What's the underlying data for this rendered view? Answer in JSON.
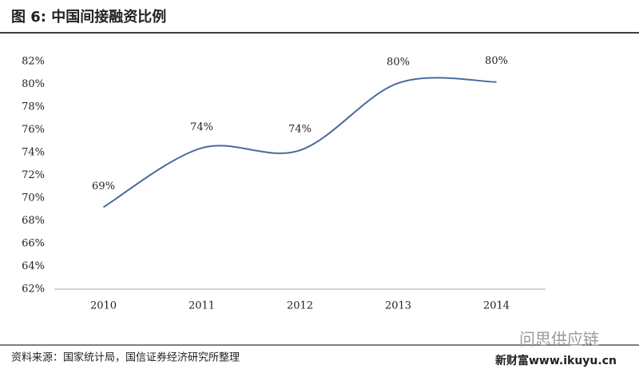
{
  "chart_data": {
    "type": "line",
    "title": "图 6: 中国间接融资比例",
    "source": "资料来源：国家统计局，国信证券经济研究所整理",
    "watermark": "问思供应链",
    "watermark_site": "新财富www.ikuyu.cn",
    "categories": [
      "2010",
      "2011",
      "2012",
      "2013",
      "2014"
    ],
    "values": [
      69.2,
      74.4,
      74.2,
      80.1,
      80.2
    ],
    "value_labels": [
      "69%",
      "74%",
      "74%",
      "80%",
      "80%"
    ],
    "color": "#4a6b9c",
    "smooth": true,
    "ylim": [
      62,
      82
    ],
    "yticks": [
      {
        "value": 62,
        "label": "62%"
      },
      {
        "value": 64,
        "label": "64%"
      },
      {
        "value": 66,
        "label": "66%"
      },
      {
        "value": 68,
        "label": "68%"
      },
      {
        "value": 70,
        "label": "70%"
      },
      {
        "value": 72,
        "label": "72%"
      },
      {
        "value": 74,
        "label": "74%"
      },
      {
        "value": 76,
        "label": "76%"
      },
      {
        "value": 78,
        "label": "78%"
      },
      {
        "value": 80,
        "label": "80%"
      },
      {
        "value": 82,
        "label": "82%"
      }
    ],
    "grid": false
  }
}
